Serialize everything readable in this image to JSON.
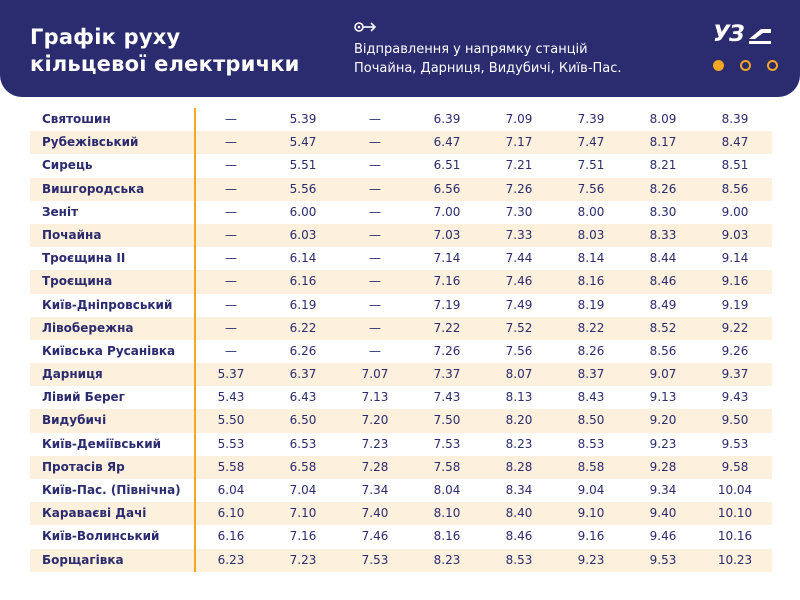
{
  "header": {
    "title_line1": "Графік руху",
    "title_line2": "кільцевої електрички",
    "subtitle_line1": "Відправлення у напрямку станцій",
    "subtitle_line2": "Почайна, Дарниця, Видубичі, Київ-Пас.",
    "logo": "УЗ",
    "accent_color": "#f5a623",
    "brand_color": "#2b2b6f",
    "icons": [
      "arrow-right-icon",
      "uz-logo-icon"
    ]
  },
  "schedule": [
    {
      "station": "Святошин",
      "times": [
        "—",
        "5.39",
        "—",
        "6.39",
        "7.09",
        "7.39",
        "8.09",
        "8.39"
      ]
    },
    {
      "station": "Рубежівський",
      "times": [
        "—",
        "5.47",
        "—",
        "6.47",
        "7.17",
        "7.47",
        "8.17",
        "8.47"
      ]
    },
    {
      "station": "Сирець",
      "times": [
        "—",
        "5.51",
        "—",
        "6.51",
        "7.21",
        "7.51",
        "8.21",
        "8.51"
      ]
    },
    {
      "station": "Вишгородська",
      "times": [
        "—",
        "5.56",
        "—",
        "6.56",
        "7.26",
        "7.56",
        "8.26",
        "8.56"
      ]
    },
    {
      "station": "Зеніт",
      "times": [
        "—",
        "6.00",
        "—",
        "7.00",
        "7.30",
        "8.00",
        "8.30",
        "9.00"
      ]
    },
    {
      "station": "Почайна",
      "times": [
        "—",
        "6.03",
        "—",
        "7.03",
        "7.33",
        "8.03",
        "8.33",
        "9.03"
      ]
    },
    {
      "station": "Троєщина ІІ",
      "times": [
        "—",
        "6.14",
        "—",
        "7.14",
        "7.44",
        "8.14",
        "8.44",
        "9.14"
      ]
    },
    {
      "station": "Троєщина",
      "times": [
        "—",
        "6.16",
        "—",
        "7.16",
        "7.46",
        "8.16",
        "8.46",
        "9.16"
      ]
    },
    {
      "station": "Київ-Дніпровський",
      "times": [
        "—",
        "6.19",
        "—",
        "7.19",
        "7.49",
        "8.19",
        "8.49",
        "9.19"
      ]
    },
    {
      "station": "Лівобережна",
      "times": [
        "—",
        "6.22",
        "—",
        "7.22",
        "7.52",
        "8.22",
        "8.52",
        "9.22"
      ]
    },
    {
      "station": "Київська Русанівка",
      "times": [
        "—",
        "6.26",
        "—",
        "7.26",
        "7.56",
        "8.26",
        "8.56",
        "9.26"
      ]
    },
    {
      "station": "Дарниця",
      "times": [
        "5.37",
        "6.37",
        "7.07",
        "7.37",
        "8.07",
        "8.37",
        "9.07",
        "9.37"
      ]
    },
    {
      "station": "Лівий Берег",
      "times": [
        "5.43",
        "6.43",
        "7.13",
        "7.43",
        "8.13",
        "8.43",
        "9.13",
        "9.43"
      ]
    },
    {
      "station": "Видубичі",
      "times": [
        "5.50",
        "6.50",
        "7.20",
        "7.50",
        "8.20",
        "8.50",
        "9.20",
        "9.50"
      ]
    },
    {
      "station": "Київ-Деміївський",
      "times": [
        "5.53",
        "6.53",
        "7.23",
        "7.53",
        "8.23",
        "8.53",
        "9.23",
        "9.53"
      ]
    },
    {
      "station": "Протасів Яр",
      "times": [
        "5.58",
        "6.58",
        "7.28",
        "7.58",
        "8.28",
        "8.58",
        "9.28",
        "9.58"
      ]
    },
    {
      "station": "Київ-Пас. (Північна)",
      "times": [
        "6.04",
        "7.04",
        "7.34",
        "8.04",
        "8.34",
        "9.04",
        "9.34",
        "10.04"
      ]
    },
    {
      "station": "Караваєві Дачі",
      "times": [
        "6.10",
        "7.10",
        "7.40",
        "8.10",
        "8.40",
        "9.10",
        "9.40",
        "10.10"
      ]
    },
    {
      "station": "Київ-Волинський",
      "times": [
        "6.16",
        "7.16",
        "7.46",
        "8.16",
        "8.46",
        "9.16",
        "9.46",
        "10.16"
      ]
    },
    {
      "station": "Борщагівка",
      "times": [
        "6.23",
        "7.23",
        "7.53",
        "8.23",
        "8.53",
        "9.23",
        "9.53",
        "10.23"
      ]
    }
  ]
}
